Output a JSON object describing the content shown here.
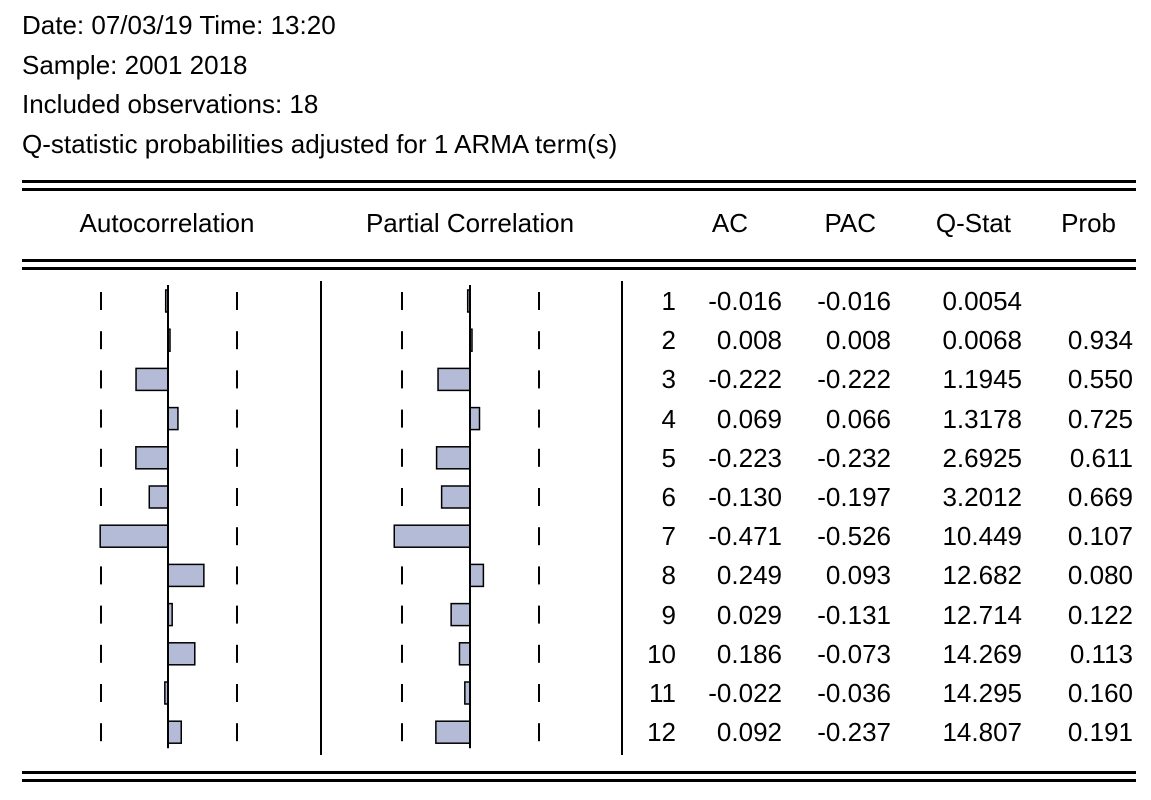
{
  "header": {
    "date_line": "Date: 07/03/19   Time: 13:20",
    "sample_line": "Sample: 2001 2018",
    "obs_line": "Included observations: 18",
    "note_line": "Q-statistic probabilities adjusted for 1 ARMA term(s)"
  },
  "columns": {
    "autocorrelation": "Autocorrelation",
    "partial_correlation": "Partial Correlation",
    "ac": "AC",
    "pac": "PAC",
    "qstat": "Q-Stat",
    "prob": "Prob"
  },
  "chart_data": {
    "type": "table",
    "lags": [
      "1",
      "2",
      "3",
      "4",
      "5",
      "6",
      "7",
      "8",
      "9",
      "10",
      "11",
      "12"
    ],
    "ac": [
      "-0.016",
      "0.008",
      "-0.222",
      "0.069",
      "-0.223",
      "-0.130",
      "-0.471",
      "0.249",
      "0.029",
      "0.186",
      "-0.022",
      "0.092"
    ],
    "pac": [
      "-0.016",
      "0.008",
      "-0.222",
      "0.066",
      "-0.232",
      "-0.197",
      "-0.526",
      "0.093",
      "-0.131",
      "-0.073",
      "-0.036",
      "-0.237"
    ],
    "qstat": [
      "0.0054",
      "0.0068",
      "1.1945",
      "1.3178",
      "2.6925",
      "3.2012",
      "10.449",
      "12.682",
      "12.714",
      "14.269",
      "14.295",
      "14.807"
    ],
    "prob": [
      "",
      "0.934",
      "0.550",
      "0.725",
      "0.611",
      "0.669",
      "0.107",
      "0.080",
      "0.122",
      "0.113",
      "0.160",
      "0.191"
    ],
    "bar_fill": "#b4bbd6"
  }
}
